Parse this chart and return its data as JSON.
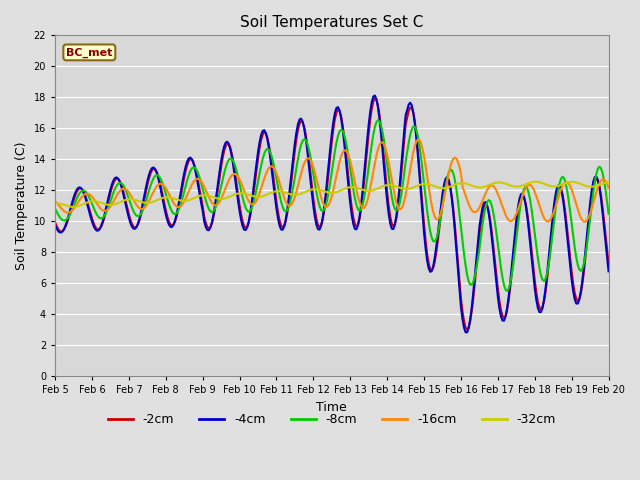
{
  "title": "Soil Temperatures Set C",
  "xlabel": "Time",
  "ylabel": "Soil Temperature (C)",
  "ylim": [
    0,
    22
  ],
  "yticks": [
    0,
    2,
    4,
    6,
    8,
    10,
    12,
    14,
    16,
    18,
    20,
    22
  ],
  "legend_label": "BC_met",
  "series_labels": [
    "-2cm",
    "-4cm",
    "-8cm",
    "-16cm",
    "-32cm"
  ],
  "series_colors": [
    "#cc0000",
    "#0000cc",
    "#00cc00",
    "#ff8800",
    "#cccc00"
  ],
  "x_tick_labels": [
    "Feb 5",
    "Feb 6",
    "Feb 7",
    "Feb 8",
    "Feb 9",
    "Feb 10",
    "Feb 11",
    "Feb 12",
    "Feb 13",
    "Feb 14",
    "Feb 15",
    "Feb 16",
    "Feb 17",
    "Feb 18",
    "Feb 19",
    "Feb 20"
  ],
  "figsize": [
    6.4,
    4.8
  ],
  "dpi": 100,
  "t_days": 15,
  "samples_per_day": 24,
  "bg_color": "#d8d8d8",
  "fig_bg": "#e0e0e0"
}
